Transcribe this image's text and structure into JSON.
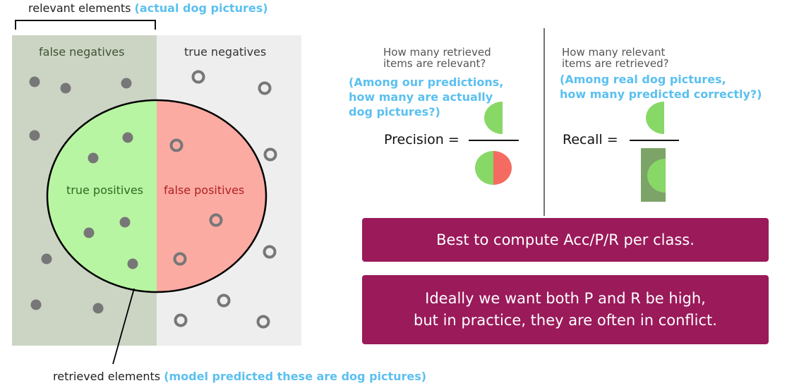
{
  "relevant_label": "relevant elements",
  "relevant_note": "(actual dog pictures)",
  "retrieved_label": "retrieved elements",
  "retrieved_note": "(model predicted these are dog pictures)",
  "regions": {
    "false_negatives": "false negatives",
    "true_negatives": "true negatives",
    "true_positives": "true positives",
    "false_positives": "false positives"
  },
  "precision": {
    "question_line1": "How many retrieved",
    "question_line2": "items are relevant?",
    "note_line1": "(Among our predictions,",
    "note_line2": "how many are actually",
    "note_line3": "dog pictures?)",
    "label": "Precision ="
  },
  "recall": {
    "question_line1": "How many relevant",
    "question_line2": "items are retrieved?",
    "note_line1": "(Among real dog pictures,",
    "note_line2": "how many predicted correctly?)",
    "label": "Recall ="
  },
  "banner1": "Best to compute Acc/P/R per class.",
  "banner2_line1": "Ideally we want both P and R be high,",
  "banner2_line2": "but in practice, they are often in conflict.",
  "colors": {
    "relevant_bg": "#ccd5c4",
    "irrelevant_bg": "#eeeeee",
    "true_positive": "#b8f5a2",
    "false_positive": "#fcaba3",
    "dot": "#777777",
    "green_half": "#88d867",
    "red_half": "#f46c61",
    "recall_rect": "#7ca368",
    "banner": "#9a1a5a",
    "note_blue": "#5bc0f0"
  },
  "icons": [
    "filled-dot-icon",
    "hollow-circle-icon",
    "bracket-icon"
  ]
}
